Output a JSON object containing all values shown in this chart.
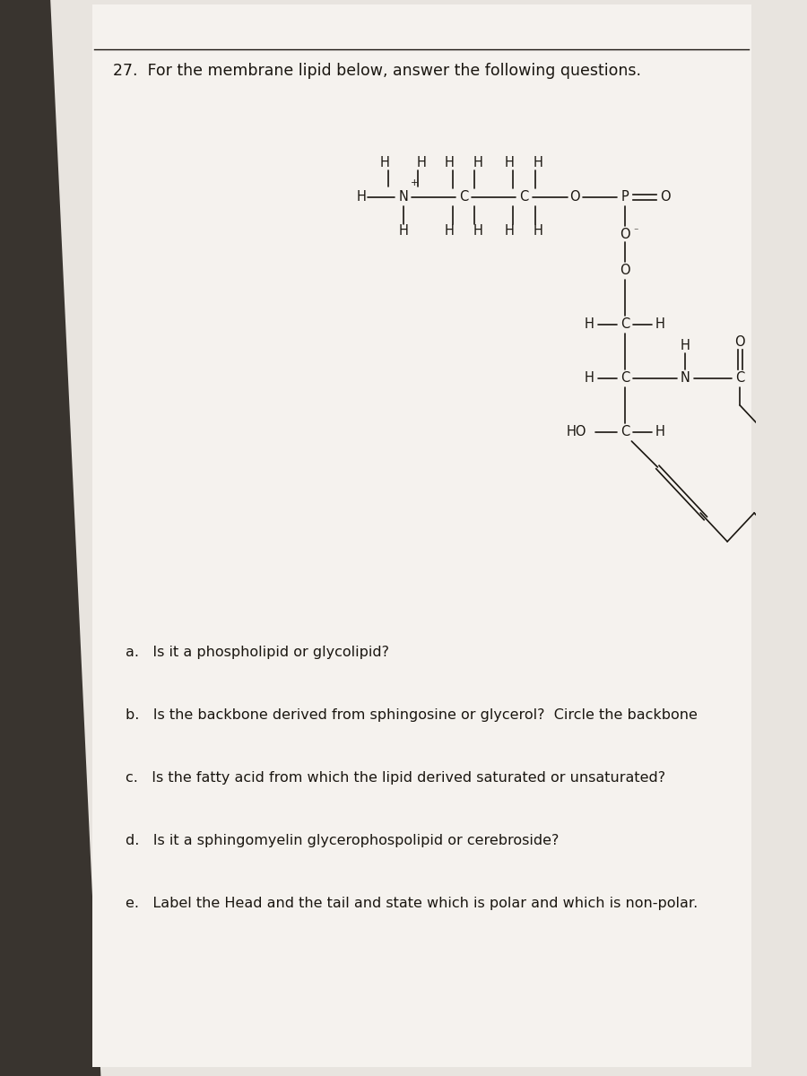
{
  "title_line": "27.  For the membrane lipid below, answer the following questions.",
  "bg_color": "#e8e4df",
  "page_color": "#f5f2ee",
  "shadow_color": "#2a2520",
  "text_color": "#1a1610",
  "questions": [
    "a.   Is it a phospholipid or glycolipid?",
    "b.   Is the backbone derived from sphingosine or glycerol?  Circle the backbone",
    "c.   Is the fatty acid from which the lipid derived saturated or unsaturated?",
    "d.   Is it a sphingomyelin glycerophospolipid or cerebroside?",
    "e.   Label the Head and the tail and state which is polar and which is non-polar."
  ],
  "font_size_title": 12.5,
  "font_size_questions": 11.5,
  "font_size_structure": 10.5
}
